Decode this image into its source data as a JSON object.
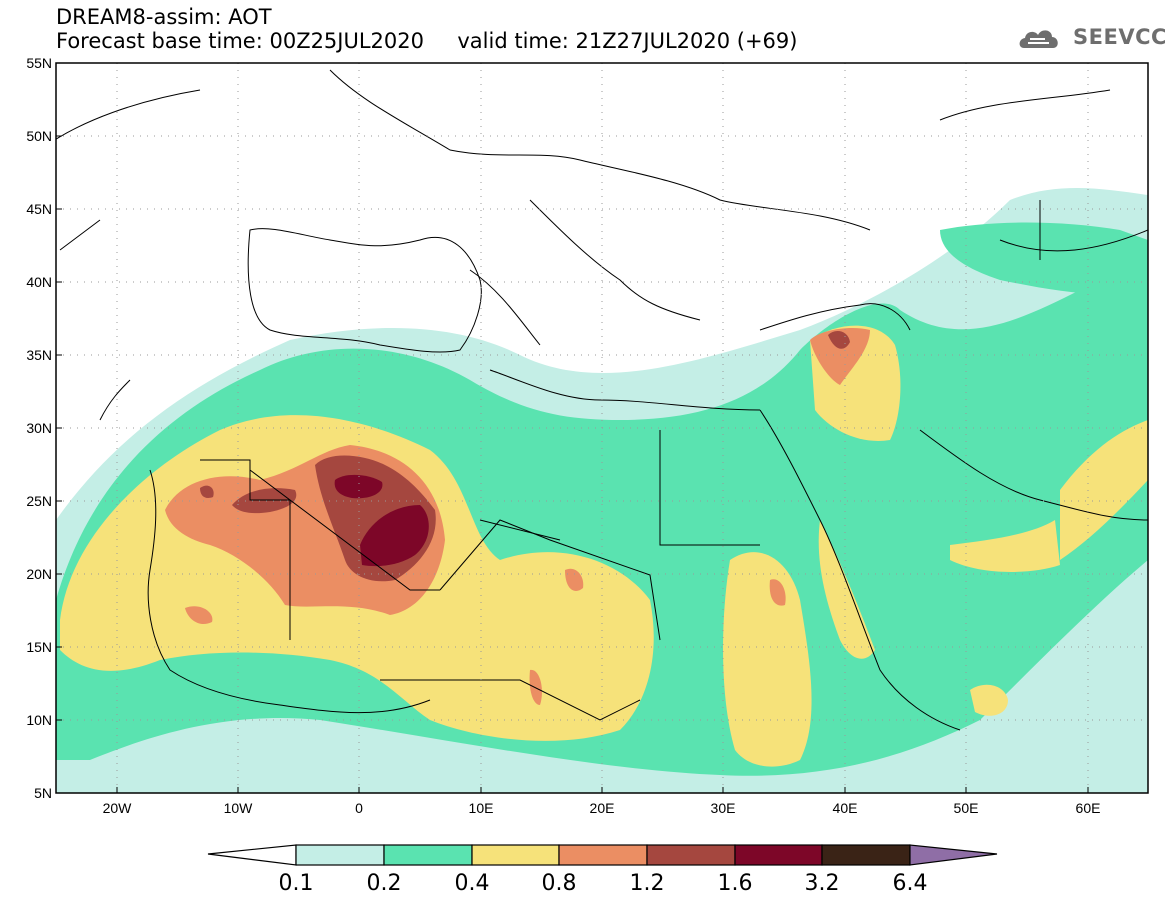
{
  "header": {
    "title_line1": "DREAM8-assim: AOT",
    "title_line2": "Forecast base time: 00Z25JUL2020     valid time: 21Z27JUL2020 (+69)",
    "logo_text": "SEEVCCC",
    "logo_icon": "cloud-logo-icon"
  },
  "map": {
    "lat_range": [
      5,
      55
    ],
    "lon_range": [
      -25,
      65
    ],
    "lat_labels": [
      "55N",
      "50N",
      "45N",
      "40N",
      "35N",
      "30N",
      "25N",
      "20N",
      "15N",
      "10N",
      "5N"
    ],
    "lon_labels": [
      "20W",
      "10W",
      "0",
      "10E",
      "20E",
      "30E",
      "40E",
      "50E",
      "60E"
    ],
    "grid": "dotted"
  },
  "legend": {
    "levels": [
      "0.1",
      "0.2",
      "0.4",
      "0.8",
      "1.2",
      "1.6",
      "3.2",
      "6.4"
    ],
    "colors": [
      "#ffffff",
      "#c4eee6",
      "#5ae3b0",
      "#f6e27a",
      "#eb8e63",
      "#a5473f",
      "#7d0628",
      "#3a2316",
      "#8f6ea6"
    ]
  }
}
